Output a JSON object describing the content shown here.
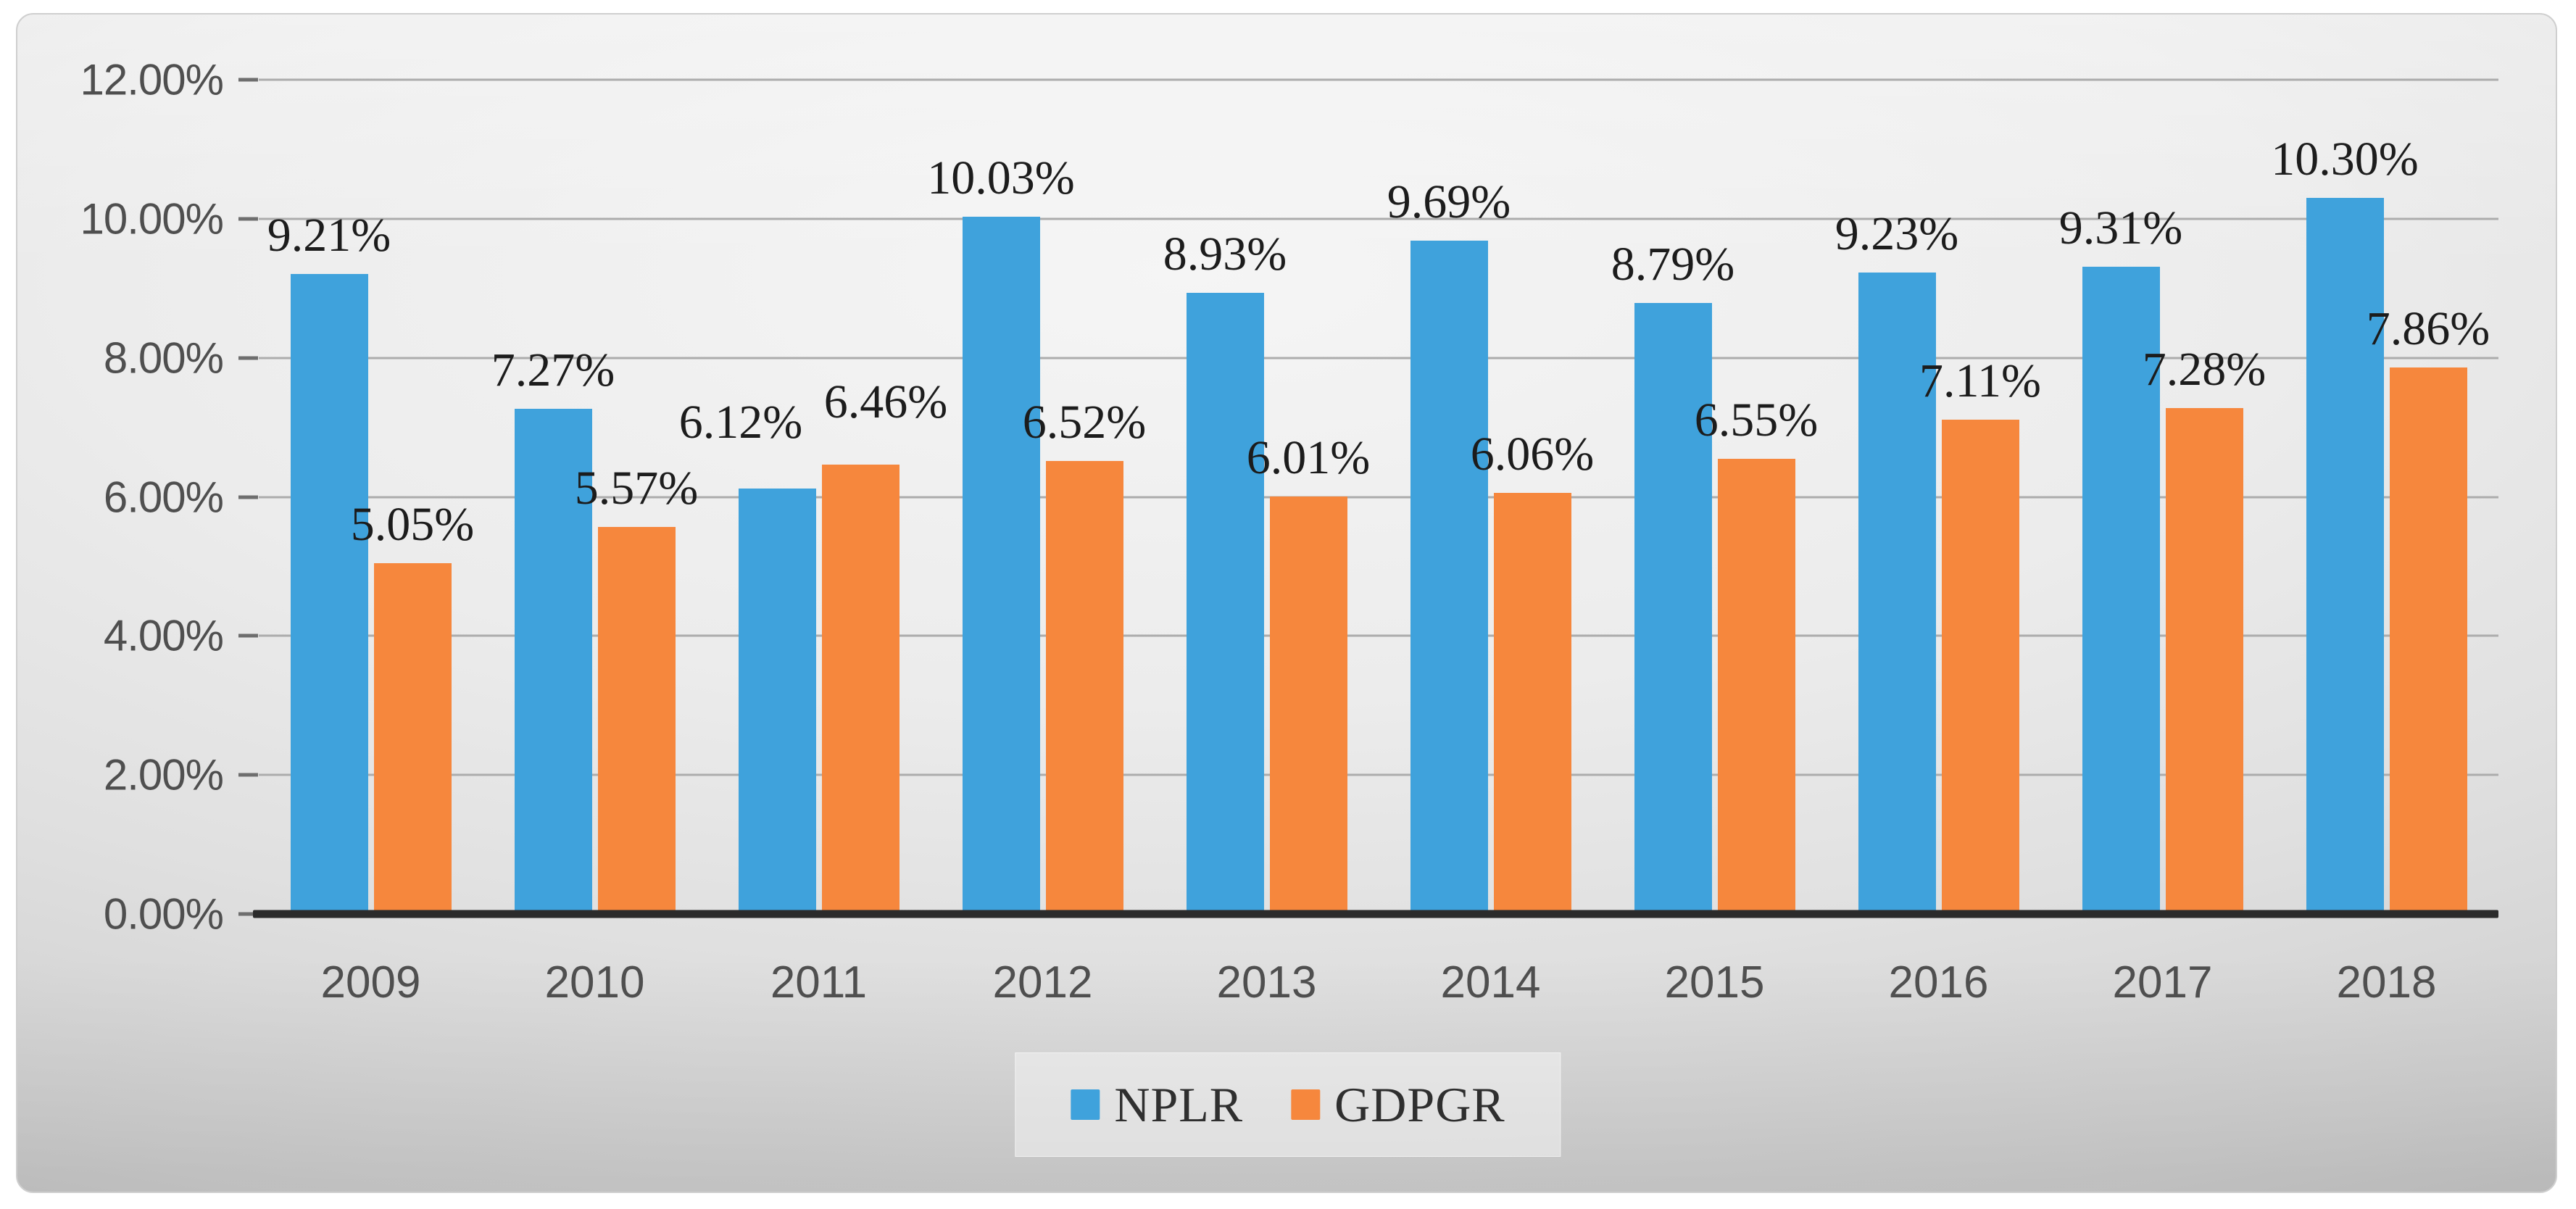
{
  "chart_data": {
    "type": "bar",
    "title": "",
    "xlabel": "",
    "ylabel": "",
    "categories": [
      "2009",
      "2010",
      "2011",
      "2012",
      "2013",
      "2014",
      "2015",
      "2016",
      "2017",
      "2018"
    ],
    "series": [
      {
        "name": "NPLR",
        "color": "#3fa2dc",
        "values": [
          9.21,
          7.27,
          6.12,
          10.03,
          8.93,
          9.69,
          8.79,
          9.23,
          9.31,
          10.3
        ],
        "labels": [
          "9.21%",
          "7.27%",
          "6.12%",
          "10.03%",
          "8.93%",
          "9.69%",
          "8.79%",
          "9.23%",
          "9.31%",
          "10.30%"
        ]
      },
      {
        "name": "GDPGR",
        "color": "#f6873d",
        "values": [
          5.05,
          5.57,
          6.46,
          6.52,
          6.01,
          6.06,
          6.55,
          7.11,
          7.28,
          7.86
        ],
        "labels": [
          "5.05%",
          "5.57%",
          "6.46%",
          "6.52%",
          "6.01%",
          "6.06%",
          "6.55%",
          "7.11%",
          "7.28%",
          "7.86%"
        ]
      }
    ],
    "ylim": [
      0,
      12
    ],
    "y_tick_step": 2,
    "y_tick_labels": [
      "0.00%",
      "2.00%",
      "4.00%",
      "6.00%",
      "8.00%",
      "10.00%",
      "12.00%"
    ],
    "grid": true,
    "legend_position": "bottom-center"
  }
}
